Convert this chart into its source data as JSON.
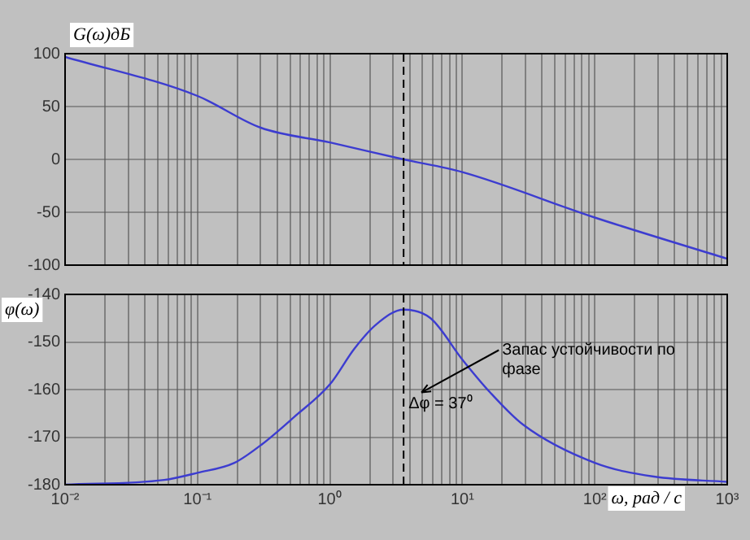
{
  "chart_data": [
    {
      "type": "line",
      "ylabel": "G(ω)дБ",
      "log": "x",
      "grid": true,
      "tick_labels": "y",
      "xlim": [
        0.01,
        1000
      ],
      "ylim": [
        -100,
        100
      ],
      "xticks": [
        0.01,
        0.1,
        1,
        10,
        100,
        1000,
        {
          "value": 0.02,
          "label": null
        },
        {
          "value": 0.03,
          "label": null
        },
        {
          "value": 0.04,
          "label": null
        },
        {
          "value": 0.05,
          "label": null
        },
        {
          "value": 0.06,
          "label": null
        },
        {
          "value": 0.07,
          "label": null
        },
        {
          "value": 0.08,
          "label": null
        },
        {
          "value": 0.09,
          "label": null
        },
        {
          "value": 0.2,
          "label": null
        },
        {
          "value": 0.3,
          "label": null
        },
        {
          "value": 0.4,
          "label": null
        },
        {
          "value": 0.5,
          "label": null
        },
        {
          "value": 0.6,
          "label": null
        },
        {
          "value": 0.7,
          "label": null
        },
        {
          "value": 0.8,
          "label": null
        },
        {
          "value": 0.9,
          "label": null
        },
        {
          "value": 2,
          "label": null
        },
        {
          "value": 3,
          "label": null
        },
        {
          "value": 4,
          "label": null
        },
        {
          "value": 5,
          "label": null
        },
        {
          "value": 6,
          "label": null
        },
        {
          "value": 7,
          "label": null
        },
        {
          "value": 8,
          "label": null
        },
        {
          "value": 9,
          "label": null
        },
        {
          "value": 20,
          "label": null
        },
        {
          "value": 30,
          "label": null
        },
        {
          "value": 40,
          "label": null
        },
        {
          "value": 50,
          "label": null
        },
        {
          "value": 60,
          "label": null
        },
        {
          "value": 70,
          "label": null
        },
        {
          "value": 80,
          "label": null
        },
        {
          "value": 90,
          "label": null
        },
        {
          "value": 200,
          "label": null
        },
        {
          "value": 300,
          "label": null
        },
        {
          "value": 400,
          "label": null
        },
        {
          "value": 500,
          "label": null
        },
        {
          "value": 600,
          "label": null
        },
        {
          "value": 700,
          "label": null
        },
        {
          "value": 800,
          "label": null
        },
        {
          "value": 900,
          "label": null
        }
      ],
      "yticks": [
        -100,
        -50,
        0,
        50,
        100
      ],
      "ref_lines": [
        {
          "axis": "x",
          "value": 3.6,
          "line_style": "dashed",
          "color": "#000000"
        }
      ],
      "series": [
        {
          "color": "#3c3cd0",
          "x": [
            0.01,
            0.1,
            0.3,
            1,
            3.6,
            10,
            100,
            1000
          ],
          "values": [
            97,
            60,
            30,
            16,
            0,
            -12,
            -55,
            -94
          ]
        }
      ]
    },
    {
      "type": "line",
      "ylabel": "φ(ω)",
      "xlabel": "ω, рад / с",
      "log": "x",
      "grid": true,
      "xlim": [
        0.01,
        1000
      ],
      "ylim": [
        -180,
        -140
      ],
      "xticks": [
        {
          "value": 0.01,
          "label": "10⁻²"
        },
        {
          "value": 0.1,
          "label": "10⁻¹"
        },
        {
          "value": 1,
          "label": "10⁰"
        },
        {
          "value": 10,
          "label": "10¹"
        },
        {
          "value": 100,
          "label": "10²"
        },
        {
          "value": 1000,
          "label": "10³"
        },
        {
          "value": 0.02,
          "label": null
        },
        {
          "value": 0.03,
          "label": null
        },
        {
          "value": 0.04,
          "label": null
        },
        {
          "value": 0.05,
          "label": null
        },
        {
          "value": 0.06,
          "label": null
        },
        {
          "value": 0.07,
          "label": null
        },
        {
          "value": 0.08,
          "label": null
        },
        {
          "value": 0.09,
          "label": null
        },
        {
          "value": 0.2,
          "label": null
        },
        {
          "value": 0.3,
          "label": null
        },
        {
          "value": 0.4,
          "label": null
        },
        {
          "value": 0.5,
          "label": null
        },
        {
          "value": 0.6,
          "label": null
        },
        {
          "value": 0.7,
          "label": null
        },
        {
          "value": 0.8,
          "label": null
        },
        {
          "value": 0.9,
          "label": null
        },
        {
          "value": 2,
          "label": null
        },
        {
          "value": 3,
          "label": null
        },
        {
          "value": 4,
          "label": null
        },
        {
          "value": 5,
          "label": null
        },
        {
          "value": 6,
          "label": null
        },
        {
          "value": 7,
          "label": null
        },
        {
          "value": 8,
          "label": null
        },
        {
          "value": 9,
          "label": null
        },
        {
          "value": 20,
          "label": null
        },
        {
          "value": 30,
          "label": null
        },
        {
          "value": 40,
          "label": null
        },
        {
          "value": 50,
          "label": null
        },
        {
          "value": 60,
          "label": null
        },
        {
          "value": 70,
          "label": null
        },
        {
          "value": 80,
          "label": null
        },
        {
          "value": 90,
          "label": null
        },
        {
          "value": 200,
          "label": null
        },
        {
          "value": 300,
          "label": null
        },
        {
          "value": 400,
          "label": null
        },
        {
          "value": 500,
          "label": null
        },
        {
          "value": 600,
          "label": null
        },
        {
          "value": 700,
          "label": null
        },
        {
          "value": 800,
          "label": null
        },
        {
          "value": 900,
          "label": null
        }
      ],
      "yticks": [
        -180,
        -170,
        -160,
        -150,
        -140
      ],
      "ref_lines": [
        {
          "axis": "x",
          "value": 3.6,
          "line_style": "dashed",
          "color": "#000000"
        }
      ],
      "annotations": [
        "Запас устойчивости по фазе",
        {
          "text": "Δφ = 37⁰",
          "x": 3.6,
          "y": -163
        }
      ],
      "series": [
        {
          "color": "#3c3cd0",
          "x": [
            0.01,
            0.056,
            0.1,
            0.19,
            0.31,
            0.54,
            1,
            1.53,
            2.24,
            3.6,
            5.75,
            10,
            16.2,
            28.8,
            100,
            279,
            1000
          ],
          "values": [
            -180,
            -179,
            -177.5,
            -175.4,
            -171.4,
            -165.7,
            -158.9,
            -151.4,
            -146.3,
            -143.2,
            -145,
            -153.7,
            -160.6,
            -167.4,
            -175.4,
            -178.3,
            -179.4
          ]
        }
      ]
    }
  ]
}
